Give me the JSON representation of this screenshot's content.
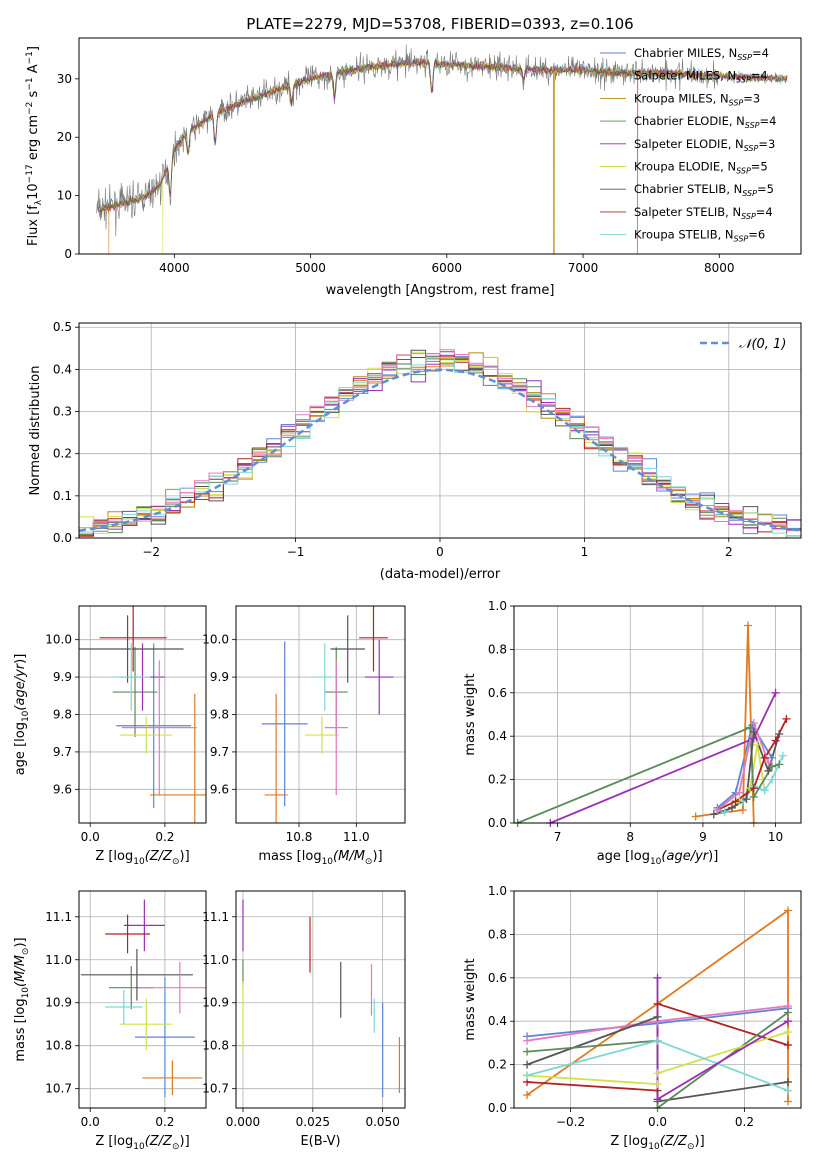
{
  "title": "PLATE=2279, MJD=53708, FIBERID=0393, z=0.106",
  "colors": {
    "Chabrier MILES": "#5f83d6",
    "Salpeter MILES": "#e07b22",
    "Kroupa MILES": "#b8860b",
    "Chabrier ELODIE": "#5b8b5b",
    "Salpeter ELODIE": "#9b30b5",
    "Kroupa ELODIE": "#d4e04a",
    "Chabrier STELIB": "#555555",
    "Salpeter STELIB": "#b22222",
    "Kroupa STELIB": "#7fd6d6",
    "normal": "#5f8fd6",
    "pink": "#e37ac0",
    "grid": "#b0b0b0"
  },
  "chart_data": [
    {
      "type": "line",
      "xlabel": "wavelength [Angstrom, rest frame]",
      "ylabel": "Flux [f_λ10^-17 erg cm^-2 s^-1 A^-1]",
      "ylabel_parts": [
        "Flux [f",
        "λ",
        "10",
        "−17",
        " erg cm",
        "−2",
        " s",
        "−1",
        " A",
        "−1",
        "]"
      ],
      "xlim": [
        3300,
        8600
      ],
      "ylim": [
        0,
        37
      ],
      "xticks": [
        "4000",
        "5000",
        "6000",
        "7000",
        "8000"
      ],
      "yticks": [
        "0",
        "10",
        "20",
        "30"
      ],
      "grid": false,
      "legend_position": "top-right",
      "legend": [
        {
          "name": "Chabrier MILES",
          "nssp": "4"
        },
        {
          "name": "Salpeter MILES",
          "nssp": "4"
        },
        {
          "name": "Kroupa MILES",
          "nssp": "3"
        },
        {
          "name": "Chabrier ELODIE",
          "nssp": "4"
        },
        {
          "name": "Salpeter ELODIE",
          "nssp": "3"
        },
        {
          "name": "Kroupa ELODIE",
          "nssp": "5"
        },
        {
          "name": "Chabrier STELIB",
          "nssp": "5"
        },
        {
          "name": "Salpeter STELIB",
          "nssp": "4"
        },
        {
          "name": "Kroupa STELIB",
          "nssp": "6"
        }
      ],
      "nssp_label": "N",
      "nssp_sub": "SSP",
      "continuum": {
        "x": [
          3400,
          3600,
          3800,
          3900,
          4000,
          4100,
          4300,
          4500,
          4800,
          5000,
          5200,
          5400,
          5600,
          5800,
          6000,
          6200,
          6500,
          6800,
          7000,
          7300,
          7600,
          8000,
          8500
        ],
        "y": [
          7.5,
          8.5,
          10,
          12,
          18,
          21,
          24,
          26,
          28.5,
          30,
          31,
          32,
          32.5,
          32.8,
          32.5,
          32.2,
          31.8,
          31.5,
          31.5,
          31,
          31,
          30.5,
          30
        ]
      },
      "absorption": {
        "x": [
          3970,
          4101,
          4300,
          4861,
          5175,
          5890,
          6563
        ],
        "depth": [
          6,
          4,
          5,
          3,
          4,
          5,
          2
        ]
      },
      "drops": {
        "Kroupa ELODIE": 3915,
        "Salpeter MILES": 3520,
        "Kroupa MILES": 6785,
        "Salpeter STELIB": 7400
      }
    },
    {
      "type": "bar",
      "xlabel": "(data-model)/error",
      "ylabel": "Normed distribution",
      "xlim": [
        -2.5,
        2.5
      ],
      "ylim": [
        0,
        0.51
      ],
      "xticks": [
        "−2",
        "−1",
        "0",
        "1",
        "2"
      ],
      "yticks": [
        "0.0",
        "0.1",
        "0.2",
        "0.3",
        "0.4",
        "0.5"
      ],
      "grid": true,
      "legend_position": "top-right",
      "legend": [
        "𝒩(0, 1)"
      ],
      "bin_width": 0.1,
      "pdf_label": "N(0,1)"
    },
    {
      "type": "scatter",
      "xlabel": "Z [log10(Z/Z⊙)]",
      "ylabel": "age [log10(age/yr)]",
      "xlim": [
        -0.03,
        0.31
      ],
      "ylim": [
        9.51,
        10.09
      ],
      "xticks": [
        "0.0",
        "0.2"
      ],
      "yticks": [
        "9.6",
        "9.7",
        "9.8",
        "9.9",
        "10.0"
      ],
      "grid": true,
      "points": [
        {
          "name": "Chabrier MILES",
          "x": 0.17,
          "xerr": 0.1,
          "y": 9.77,
          "yerr": 0.22
        },
        {
          "name": "Salpeter MILES",
          "x": 0.28,
          "xerr": 0.12,
          "y": 9.585,
          "yerr": 0.27
        },
        {
          "name": "Chabrier ELODIE",
          "x": 0.12,
          "xerr": 0.06,
          "y": 9.86,
          "yerr": 0.12
        },
        {
          "name": "Salpeter ELODIE",
          "x": 0.14,
          "xerr": 0.06,
          "y": 9.9,
          "yerr": 0.09
        },
        {
          "name": "Kroupa ELODIE",
          "x": 0.15,
          "xerr": 0.07,
          "y": 9.745,
          "yerr": 0.05
        },
        {
          "name": "Chabrier STELIB",
          "x": 0.1,
          "xerr": 0.15,
          "y": 9.975,
          "yerr": 0.09
        },
        {
          "name": "Salpeter STELIB",
          "x": 0.115,
          "xerr": 0.09,
          "y": 10.005,
          "yerr": 0.09
        },
        {
          "name": "Kroupa STELIB",
          "x": 0.11,
          "xerr": 0.05,
          "y": 9.9,
          "yerr": 0.09
        },
        {
          "name": "pink",
          "x": 0.185,
          "xerr": 0.1,
          "y": 9.765,
          "yerr": 0.18
        }
      ]
    },
    {
      "type": "scatter",
      "xlabel": "mass [log10(M/M⊙)]",
      "ylabel": "",
      "xlim": [
        10.58,
        11.17
      ],
      "ylim": [
        9.51,
        10.09
      ],
      "xticks": [
        "10.8",
        "11.0"
      ],
      "yticks": [
        "9.6",
        "9.7",
        "9.8",
        "9.9",
        "10.0"
      ],
      "grid": true,
      "points": [
        {
          "name": "Chabrier MILES",
          "x": 10.75,
          "xerr": 0.08,
          "y": 9.775,
          "yerr": 0.22
        },
        {
          "name": "Salpeter MILES",
          "x": 10.72,
          "xerr": 0.04,
          "y": 9.585,
          "yerr": 0.27
        },
        {
          "name": "Chabrier ELODIE",
          "x": 10.93,
          "xerr": 0.04,
          "y": 9.86,
          "yerr": 0.12
        },
        {
          "name": "Salpeter ELODIE",
          "x": 11.08,
          "xerr": 0.05,
          "y": 9.9,
          "yerr": 0.1
        },
        {
          "name": "Kroupa ELODIE",
          "x": 10.88,
          "xerr": 0.06,
          "y": 9.745,
          "yerr": 0.05
        },
        {
          "name": "Chabrier STELIB",
          "x": 10.97,
          "xerr": 0.06,
          "y": 9.975,
          "yerr": 0.09
        },
        {
          "name": "Salpeter STELIB",
          "x": 11.06,
          "xerr": 0.05,
          "y": 10.005,
          "yerr": 0.09
        },
        {
          "name": "Kroupa STELIB",
          "x": 10.89,
          "xerr": 0.04,
          "y": 9.9,
          "yerr": 0.09
        },
        {
          "name": "pink",
          "x": 10.93,
          "xerr": 0.04,
          "y": 9.765,
          "yerr": 0.18
        }
      ]
    },
    {
      "type": "line",
      "xlabel": "age [log10(age/yr)]",
      "ylabel": "mass weight",
      "xlim": [
        6.4,
        10.35
      ],
      "ylim": [
        0,
        1
      ],
      "xticks": [
        "7",
        "8",
        "9",
        "10"
      ],
      "yticks": [
        "0.0",
        "0.2",
        "0.4",
        "0.6",
        "0.8",
        "1.0"
      ],
      "grid": true,
      "series": [
        {
          "name": "Kroupa ELODIE",
          "x": [
            9.3,
            9.5,
            9.65,
            9.75,
            9.85
          ],
          "y": [
            0.05,
            0.1,
            0.16,
            0.36,
            0.15
          ]
        },
        {
          "name": "Chabrier MILES",
          "x": [
            9.2,
            9.45,
            9.68,
            9.95
          ],
          "y": [
            0.07,
            0.14,
            0.45,
            0.3
          ]
        },
        {
          "name": "Kroupa STELIB",
          "x": [
            9.3,
            9.55,
            9.7,
            9.85,
            9.95,
            10.1
          ],
          "y": [
            0.05,
            0.1,
            0.17,
            0.15,
            0.2,
            0.31
          ]
        },
        {
          "name": "Salpeter MILES",
          "x": [
            8.9,
            9.55,
            9.62,
            9.7
          ],
          "y": [
            0.03,
            0.06,
            0.91,
            0.0
          ]
        },
        {
          "name": "Chabrier ELODIE",
          "x": [
            6.45,
            9.65,
            9.7,
            9.95,
            10.05
          ],
          "y": [
            0.0,
            0.44,
            0.12,
            0.26,
            0.27
          ]
        },
        {
          "name": "Salpeter ELODIE",
          "x": [
            6.9,
            9.7,
            10.0
          ],
          "y": [
            0.0,
            0.39,
            0.6
          ]
        },
        {
          "name": "Chabrier STELIB",
          "x": [
            9.15,
            9.4,
            9.6,
            9.7,
            9.9,
            10.05
          ],
          "y": [
            0.04,
            0.07,
            0.11,
            0.42,
            0.24,
            0.41
          ]
        },
        {
          "name": "Salpeter STELIB",
          "x": [
            9.2,
            9.45,
            9.7,
            9.85,
            10.0,
            10.15
          ],
          "y": [
            0.06,
            0.1,
            0.16,
            0.3,
            0.38,
            0.48
          ]
        },
        {
          "name": "pink",
          "x": [
            9.2,
            9.5,
            9.7,
            9.9
          ],
          "y": [
            0.06,
            0.14,
            0.46,
            0.28
          ]
        }
      ]
    },
    {
      "type": "scatter",
      "xlabel": "Z [log10(Z/Z⊙)]",
      "ylabel": "mass [log10(M/M⊙)]",
      "xlim": [
        -0.03,
        0.31
      ],
      "ylim": [
        10.655,
        11.16
      ],
      "xticks": [
        "0.0",
        "0.2"
      ],
      "yticks": [
        "10.7",
        "10.8",
        "10.9",
        "11.0",
        "11.1"
      ],
      "grid": true,
      "points": [
        {
          "name": "Chabrier MILES",
          "x": 0.2,
          "xerr": 0.08,
          "y": 10.82,
          "yerr": 0.14
        },
        {
          "name": "Salpeter MILES",
          "x": 0.22,
          "xerr": 0.08,
          "y": 10.725,
          "yerr": 0.04
        },
        {
          "name": "Chabrier ELODIE",
          "x": 0.11,
          "xerr": 0.06,
          "y": 10.935,
          "yerr": 0.05
        },
        {
          "name": "Salpeter ELODIE",
          "x": 0.145,
          "xerr": 0.055,
          "y": 11.08,
          "yerr": 0.06
        },
        {
          "name": "Kroupa ELODIE",
          "x": 0.15,
          "xerr": 0.07,
          "y": 10.85,
          "yerr": 0.06
        },
        {
          "name": "Chabrier STELIB",
          "x": 0.125,
          "xerr": 0.15,
          "y": 10.965,
          "yerr": 0.06
        },
        {
          "name": "Salpeter STELIB",
          "x": 0.1,
          "xerr": 0.06,
          "y": 11.06,
          "yerr": 0.045
        },
        {
          "name": "Kroupa STELIB",
          "x": 0.09,
          "xerr": 0.05,
          "y": 10.89,
          "yerr": 0.04
        },
        {
          "name": "pink",
          "x": 0.24,
          "xerr": 0.11,
          "y": 10.935,
          "yerr": 0.06
        }
      ]
    },
    {
      "type": "scatter",
      "xlabel": "E(B-V)",
      "ylabel": "",
      "xlim": [
        -0.0025,
        0.058
      ],
      "ylim": [
        10.655,
        11.16
      ],
      "xticks": [
        "0.000",
        "0.025",
        "0.050"
      ],
      "yticks": [
        "10.7",
        "10.8",
        "10.9",
        "11.0",
        "11.1"
      ],
      "grid": true,
      "points": [
        {
          "name": "Chabrier MILES",
          "x": 0.05,
          "xerr": 0,
          "y": 10.79,
          "yerr": 0.11
        },
        {
          "name": "Salpeter MILES",
          "x": 0.056,
          "xerr": 0,
          "y": 10.755,
          "yerr": 0.065
        },
        {
          "name": "Chabrier ELODIE",
          "x": 0.0,
          "xerr": 0,
          "y": 10.97,
          "yerr": 0.03
        },
        {
          "name": "Salpeter ELODIE",
          "x": 0.0,
          "xerr": 0,
          "y": 11.08,
          "yerr": 0.06
        },
        {
          "name": "Kroupa ELODIE",
          "x": 0.0,
          "xerr": 0,
          "y": 10.87,
          "yerr": 0.08
        },
        {
          "name": "Chabrier STELIB",
          "x": 0.035,
          "xerr": 0,
          "y": 10.93,
          "yerr": 0.065
        },
        {
          "name": "Salpeter STELIB",
          "x": 0.024,
          "xerr": 0,
          "y": 11.035,
          "yerr": 0.065
        },
        {
          "name": "Kroupa STELIB",
          "x": 0.047,
          "xerr": 0,
          "y": 10.87,
          "yerr": 0.04
        },
        {
          "name": "pink",
          "x": 0.046,
          "xerr": 0,
          "y": 10.93,
          "yerr": 0.06
        }
      ]
    },
    {
      "type": "line",
      "xlabel": "Z [log10(Z/Z⊙)]",
      "ylabel": "mass weight",
      "xlim": [
        -0.33,
        0.33
      ],
      "ylim": [
        0,
        1
      ],
      "xticks": [
        "−0.2",
        "0.0",
        "0.2"
      ],
      "yticks": [
        "0.0",
        "0.2",
        "0.4",
        "0.6",
        "0.8",
        "1.0"
      ],
      "grid": true,
      "series": [
        {
          "name": "Salpeter MILES",
          "x": [
            -0.3,
            0.0,
            0.3,
            0.3
          ],
          "y": [
            0.06,
            0.48,
            0.91,
            0.03
          ]
        },
        {
          "name": "Chabrier MILES",
          "x": [
            -0.3,
            0.0,
            0.3
          ],
          "y": [
            0.33,
            0.39,
            0.46
          ]
        },
        {
          "name": "pink",
          "x": [
            -0.3,
            0.0,
            0.3
          ],
          "y": [
            0.31,
            0.4,
            0.47
          ]
        },
        {
          "name": "Salpeter STELIB",
          "x": [
            -0.3,
            0.0,
            0.0,
            0.3
          ],
          "y": [
            0.12,
            0.08,
            0.48,
            0.29
          ]
        },
        {
          "name": "Chabrier STELIB",
          "x": [
            -0.3,
            0.0,
            0.0,
            0.3
          ],
          "y": [
            0.2,
            0.42,
            0.03,
            0.12
          ]
        },
        {
          "name": "Chabrier ELODIE",
          "x": [
            -0.3,
            0.0,
            0.0,
            0.3
          ],
          "y": [
            0.26,
            0.31,
            0.0,
            0.44
          ]
        },
        {
          "name": "Kroupa ELODIE",
          "x": [
            -0.3,
            0.0,
            0.0,
            0.3
          ],
          "y": [
            0.15,
            0.11,
            0.16,
            0.35
          ]
        },
        {
          "name": "Kroupa STELIB",
          "x": [
            -0.3,
            0.0,
            0.3
          ],
          "y": [
            0.15,
            0.31,
            0.08
          ]
        },
        {
          "name": "Salpeter ELODIE",
          "x": [
            0.0,
            0.0,
            0.3
          ],
          "y": [
            0.6,
            0.04,
            0.4
          ]
        }
      ]
    }
  ]
}
